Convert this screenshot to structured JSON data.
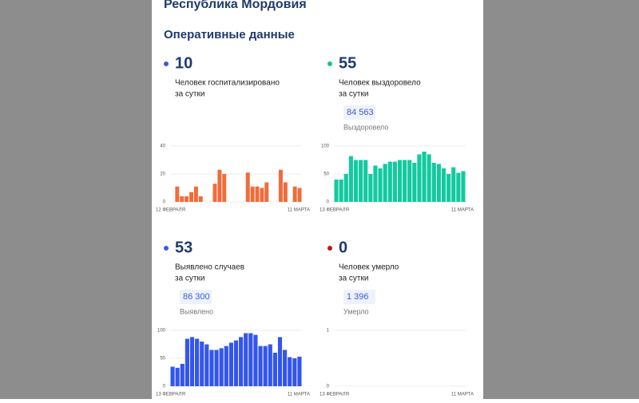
{
  "header": {
    "title": "Республика Мордовия",
    "section": "Оперативные данные"
  },
  "chart_data": [
    {
      "type": "bar",
      "stat": "10",
      "caption": [
        "Человек госпитализировано",
        "за сутки"
      ],
      "dot_color": "#3b5bdb",
      "color": "#f26b3a",
      "categories": [
        "12 ФЕВРАЛЯ",
        null,
        null,
        null,
        null,
        null,
        null,
        null,
        null,
        null,
        null,
        null,
        null,
        null,
        null,
        null,
        null,
        null,
        null,
        null,
        null,
        null,
        null,
        null,
        null,
        null,
        null,
        "11 МАРТА"
      ],
      "values": [
        0,
        11,
        4,
        4,
        7,
        11,
        4,
        0,
        0,
        13,
        23,
        20,
        0,
        0,
        0,
        0,
        21,
        11,
        11,
        10,
        14,
        0,
        0,
        23,
        14,
        0,
        11,
        10
      ],
      "ylim": [
        0,
        40
      ],
      "yticks": [
        0,
        20,
        40
      ],
      "grid": true
    },
    {
      "type": "bar",
      "stat": "55",
      "caption": [
        "Человек выздоровело",
        "за сутки"
      ],
      "total": "84 563",
      "total_label": "Выздоровело",
      "dot_color": "#17c39a",
      "color": "#13c9a0",
      "categories": [
        "13 ФЕВРАЛЯ",
        null,
        null,
        null,
        null,
        null,
        null,
        null,
        null,
        null,
        null,
        null,
        null,
        null,
        null,
        null,
        null,
        null,
        null,
        null,
        null,
        null,
        null,
        null,
        null,
        null,
        "11 МАРТА"
      ],
      "values": [
        40,
        40,
        50,
        82,
        75,
        75,
        75,
        50,
        65,
        60,
        68,
        72,
        72,
        75,
        75,
        75,
        70,
        85,
        90,
        85,
        70,
        68,
        60,
        50,
        62,
        52,
        55
      ],
      "ylim": [
        0,
        100
      ],
      "yticks": [
        0,
        50,
        100
      ],
      "grid": true
    },
    {
      "type": "bar",
      "stat": "53",
      "caption": [
        "Выявлено случаев",
        "за сутки"
      ],
      "total": "86 300",
      "total_label": "Выявлено",
      "dot_color": "#3b5bdb",
      "color": "#3355ee",
      "categories": [
        "13 ФЕВРАЛЯ",
        null,
        null,
        null,
        null,
        null,
        null,
        null,
        null,
        null,
        null,
        null,
        null,
        null,
        null,
        null,
        null,
        null,
        null,
        null,
        null,
        null,
        null,
        null,
        null,
        null,
        "11 МАРТА"
      ],
      "values": [
        35,
        33,
        40,
        85,
        88,
        85,
        80,
        75,
        65,
        65,
        68,
        72,
        78,
        82,
        88,
        95,
        95,
        92,
        72,
        72,
        75,
        60,
        88,
        65,
        52,
        50,
        53
      ],
      "ylim": [
        0,
        100
      ],
      "yticks": [
        0,
        50,
        100
      ],
      "grid": true
    },
    {
      "type": "bar",
      "stat": "0",
      "caption": [
        "Человек умерло",
        "за сутки"
      ],
      "total": "1 396",
      "total_label": "Умерло",
      "dot_color": "#c0141c",
      "color": "#3355ee",
      "categories": [
        "13 ФЕВРАЛЯ",
        null,
        null,
        null,
        null,
        null,
        null,
        null,
        null,
        null,
        null,
        null,
        null,
        null,
        null,
        null,
        null,
        null,
        null,
        null,
        null,
        null,
        null,
        null,
        null,
        null,
        "11 МАРТА"
      ],
      "values": [
        0,
        0,
        0,
        0,
        0,
        0,
        0,
        0,
        0,
        0,
        0,
        0,
        0,
        0,
        0,
        0,
        0,
        0,
        0,
        0,
        0,
        0,
        0,
        0,
        0,
        0,
        0
      ],
      "ylim": [
        0,
        1
      ],
      "yticks": [
        0,
        1
      ],
      "grid": true
    }
  ]
}
